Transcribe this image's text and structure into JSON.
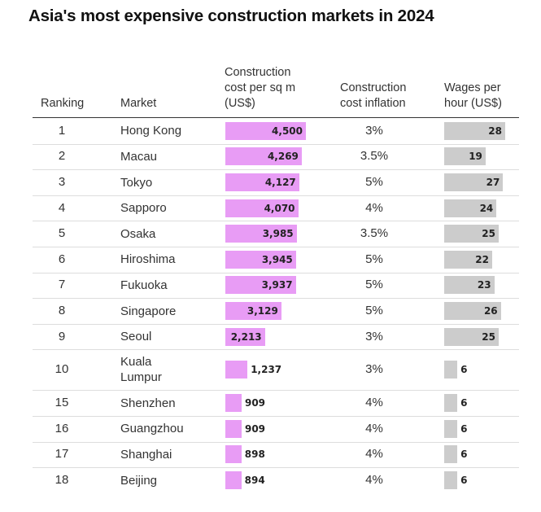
{
  "title": "Asia's most expensive construction markets in 2024",
  "columns": {
    "ranking": "Ranking",
    "market": "Market",
    "cost": "Construction\ncost per sq m\n(US$)",
    "inflation": "Construction\ncost inflation",
    "wages": "Wages per\nhour (US$)"
  },
  "colors": {
    "cost_bar": "#e89cf5",
    "wage_bar": "#cccccc"
  },
  "chart_data": {
    "type": "table",
    "title": "Asia's most expensive construction markets in 2024",
    "headers": [
      "Ranking",
      "Market",
      "Construction cost per sq m (US$)",
      "Construction cost inflation",
      "Wages per hour (US$)"
    ],
    "rows": [
      {
        "rank": "1",
        "market": "Hong Kong",
        "cost": 4500,
        "cost_label": "4,500",
        "inflation": "3%",
        "wage": 28,
        "wage_label": "28"
      },
      {
        "rank": "2",
        "market": "Macau",
        "cost": 4269,
        "cost_label": "4,269",
        "inflation": "3.5%",
        "wage": 19,
        "wage_label": "19"
      },
      {
        "rank": "3",
        "market": "Tokyo",
        "cost": 4127,
        "cost_label": "4,127",
        "inflation": "5%",
        "wage": 27,
        "wage_label": "27"
      },
      {
        "rank": "4",
        "market": "Sapporo",
        "cost": 4070,
        "cost_label": "4,070",
        "inflation": "4%",
        "wage": 24,
        "wage_label": "24"
      },
      {
        "rank": "5",
        "market": "Osaka",
        "cost": 3985,
        "cost_label": "3,985",
        "inflation": "3.5%",
        "wage": 25,
        "wage_label": "25"
      },
      {
        "rank": "6",
        "market": "Hiroshima",
        "cost": 3945,
        "cost_label": "3,945",
        "inflation": "5%",
        "wage": 22,
        "wage_label": "22"
      },
      {
        "rank": "7",
        "market": "Fukuoka",
        "cost": 3937,
        "cost_label": "3,937",
        "inflation": "5%",
        "wage": 23,
        "wage_label": "23"
      },
      {
        "rank": "8",
        "market": "Singapore",
        "cost": 3129,
        "cost_label": "3,129",
        "inflation": "5%",
        "wage": 26,
        "wage_label": "26"
      },
      {
        "rank": "9",
        "market": "Seoul",
        "cost": 2213,
        "cost_label": "2,213",
        "inflation": "3%",
        "wage": 25,
        "wage_label": "25"
      },
      {
        "rank": "10",
        "market": "Kuala\nLumpur",
        "cost": 1237,
        "cost_label": "1,237",
        "inflation": "3%",
        "wage": 6,
        "wage_label": "6"
      },
      {
        "rank": "15",
        "market": "Shenzhen",
        "cost": 909,
        "cost_label": "909",
        "inflation": "4%",
        "wage": 6,
        "wage_label": "6"
      },
      {
        "rank": "16",
        "market": "Guangzhou",
        "cost": 909,
        "cost_label": "909",
        "inflation": "4%",
        "wage": 6,
        "wage_label": "6"
      },
      {
        "rank": "17",
        "market": "Shanghai",
        "cost": 898,
        "cost_label": "898",
        "inflation": "4%",
        "wage": 6,
        "wage_label": "6"
      },
      {
        "rank": "18",
        "market": "Beijing",
        "cost": 894,
        "cost_label": "894",
        "inflation": "4%",
        "wage": 6,
        "wage_label": "6"
      }
    ]
  }
}
